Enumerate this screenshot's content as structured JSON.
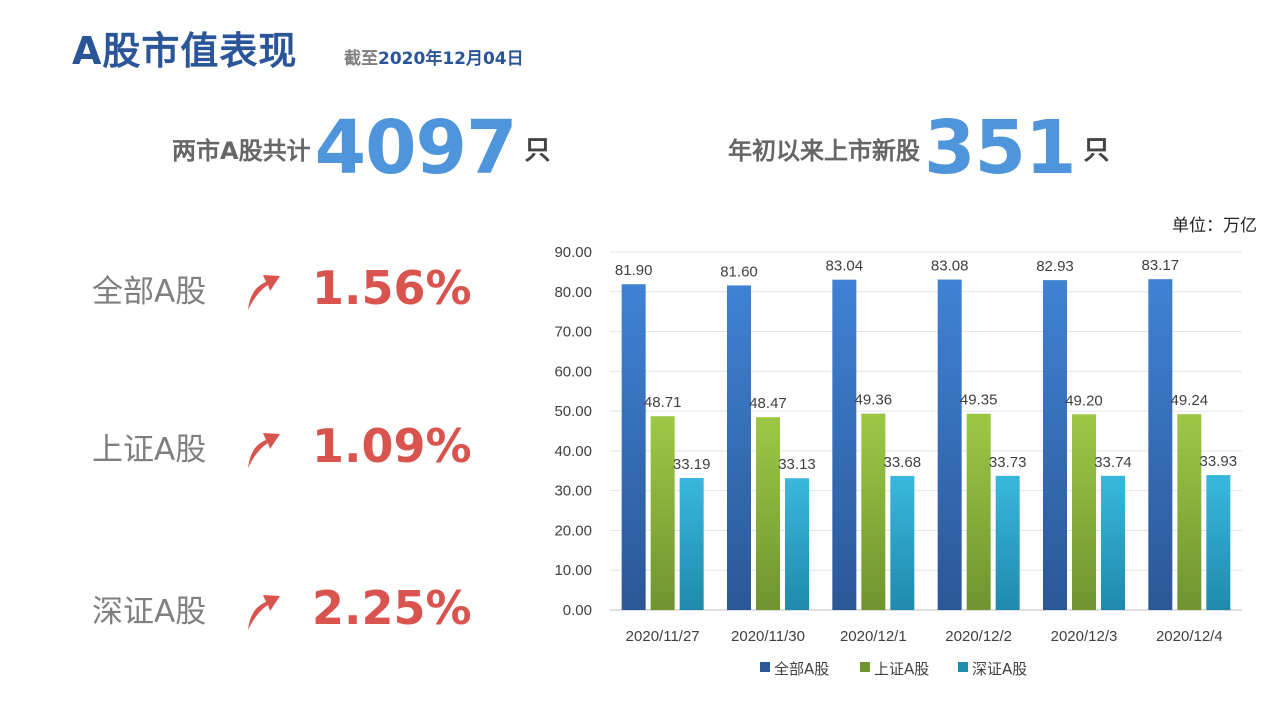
{
  "header": {
    "title": "A股市值表现",
    "subtitle_prefix": "截至",
    "subtitle_date": "2020年12月04日"
  },
  "stats": {
    "total_label": "两市A股共计",
    "total_value": "4097",
    "total_unit": "只",
    "new_label": "年初以来上市新股",
    "new_value": "351",
    "new_unit": "只"
  },
  "indices": [
    {
      "name": "全部A股",
      "change": "1.56%",
      "direction": "up"
    },
    {
      "name": "上证A股",
      "change": "1.09%",
      "direction": "up"
    },
    {
      "name": "深证A股",
      "change": "2.25%",
      "direction": "up"
    }
  ],
  "unit_label": "单位：万亿",
  "colors": {
    "accent": "#2a5598",
    "number": "#4f95dc",
    "up": "#d9534f"
  },
  "chart_data": {
    "type": "bar",
    "categories": [
      "2020/11/27",
      "2020/11/30",
      "2020/12/1",
      "2020/12/2",
      "2020/12/3",
      "2020/12/4"
    ],
    "series": [
      {
        "name": "全部A股",
        "values": [
          81.9,
          81.6,
          83.04,
          83.08,
          82.93,
          83.17
        ],
        "color_top": "#3f82d4",
        "color_bottom": "#2b5797"
      },
      {
        "name": "上证A股",
        "values": [
          48.71,
          48.47,
          49.36,
          49.35,
          49.2,
          49.24
        ],
        "color_top": "#9dc845",
        "color_bottom": "#6f9430"
      },
      {
        "name": "深证A股",
        "values": [
          33.19,
          33.13,
          33.68,
          33.73,
          33.74,
          33.93
        ],
        "color_top": "#3ab7de",
        "color_bottom": "#1f8aab"
      }
    ],
    "ylim": [
      0,
      90
    ],
    "yticks": [
      0,
      10,
      20,
      30,
      40,
      50,
      60,
      70,
      80,
      90
    ],
    "grid": true,
    "legend": "bottom",
    "data_labels": true
  }
}
